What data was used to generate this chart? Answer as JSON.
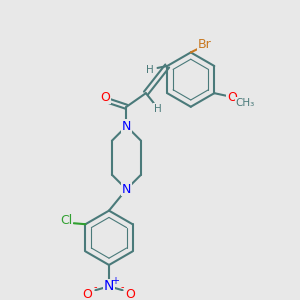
{
  "background_color": "#e8e8e8",
  "bond_color": "#4a7a7a",
  "bond_lw": 1.5,
  "atom_colors": {
    "Br": "#c87820",
    "Cl": "#30a030",
    "N": "#0000ff",
    "O": "#ff0000",
    "C_bond": "#4a7a7a",
    "H": "#4a7a7a"
  },
  "font_size_atom": 9,
  "font_size_small": 7.5
}
